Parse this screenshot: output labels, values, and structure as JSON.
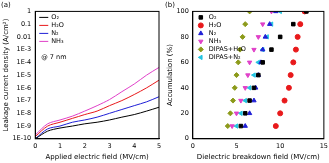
{
  "chart_data": [
    {
      "type": "line",
      "title": "(a)",
      "x_label": "Applied electric field (MV/cm)",
      "y_label": "Leakage current density (A/cm²)",
      "annotation": "@ 7 nm",
      "log": "y",
      "grid": false,
      "legend": "upper left",
      "x": [
        0,
        0.5,
        1,
        1.5,
        2,
        2.5,
        3,
        3.5,
        4,
        4.5,
        5
      ],
      "xlim": [
        0,
        5
      ],
      "xticks": [
        0,
        1,
        2,
        3,
        4,
        5
      ],
      "ylim": [
        1e-10,
        1
      ],
      "yticks": [
        {
          "value": 1e-10,
          "label": "1E-10"
        },
        {
          "value": 1e-09,
          "label": "1E-9"
        },
        {
          "value": 1e-08,
          "label": "1E-8"
        },
        {
          "value": 1e-07,
          "label": "1E-7"
        },
        {
          "value": 1e-06,
          "label": "1E-6"
        },
        {
          "value": 1e-05,
          "label": "1E-5"
        },
        {
          "value": 0.0001,
          "label": "1E-4"
        },
        {
          "value": 0.001,
          "label": "1E-3"
        },
        0.01,
        0.1,
        1
      ],
      "series": [
        {
          "name": "O₂",
          "color": "#000000",
          "values": [
            1e-10,
            4e-10,
            7e-10,
            1e-09,
            1.5e-09,
            2e-09,
            3e-09,
            5e-09,
            8e-09,
            1.5e-08,
            3e-08
          ]
        },
        {
          "name": "H₂O",
          "color": "#e8191b",
          "values": [
            1.5e-10,
            1e-09,
            2e-09,
            4e-09,
            8e-09,
            1.5e-08,
            4e-08,
            1e-07,
            3e-07,
            1e-06,
            4e-06
          ]
        },
        {
          "name": "N₂",
          "color": "#1f1fd6",
          "values": [
            1e-10,
            6e-10,
            1e-09,
            2e-09,
            3e-09,
            5e-09,
            1e-08,
            2e-08,
            4e-08,
            8e-08,
            2e-07
          ]
        },
        {
          "name": "NH₃",
          "color": "#e040c8",
          "values": [
            2e-10,
            1.5e-09,
            3e-09,
            6e-09,
            1.5e-08,
            4e-08,
            1.2e-07,
            5e-07,
            2e-06,
            1e-05,
            4e-05
          ]
        }
      ]
    },
    {
      "type": "scatter",
      "title": "(b)",
      "x_label": "Dielectric breakdown field (MV/cm)",
      "y_label": "Accumulation (%)",
      "grid": false,
      "legend": "upper left",
      "xlim": [
        0,
        15
      ],
      "xticks": [
        0,
        5,
        10,
        15
      ],
      "ylim": [
        0,
        100
      ],
      "yticks": [
        0,
        20,
        40,
        60,
        80,
        100
      ],
      "series": [
        {
          "name": "O₂",
          "color": "#000000",
          "marker": "square",
          "x": [
            5.5,
            6,
            6.5,
            7,
            7.5,
            8,
            9,
            10,
            11.5,
            13
          ],
          "values": [
            10,
            20,
            30,
            40,
            50,
            60,
            70,
            80,
            90,
            100
          ]
        },
        {
          "name": "H₂O",
          "color": "#e8191b",
          "marker": "circle",
          "x": [
            9.5,
            10,
            10.5,
            11,
            11.2,
            11.5,
            11.8,
            12,
            12.3,
            12.8
          ],
          "values": [
            10,
            20,
            30,
            40,
            50,
            60,
            70,
            80,
            90,
            100
          ]
        },
        {
          "name": "N₂",
          "color": "#1f1fd6",
          "marker": "triangle",
          "x": [
            6,
            6.5,
            7,
            7.2,
            7.5,
            7.8,
            8,
            8.3,
            8.8,
            9.5
          ],
          "values": [
            10,
            20,
            30,
            40,
            50,
            60,
            70,
            80,
            90,
            100
          ]
        },
        {
          "name": "NH₃",
          "color": "#e040c8",
          "marker": "triangle_down",
          "x": [
            4.5,
            5,
            5.5,
            6,
            6.3,
            6.5,
            7,
            7.5,
            8,
            9
          ],
          "values": [
            10,
            20,
            30,
            40,
            50,
            60,
            70,
            80,
            90,
            100
          ]
        },
        {
          "name": "DIPAS+H₂O",
          "color": "#8c9a1a",
          "marker": "diamond",
          "x": [
            4,
            4.3,
            4.6,
            4.8,
            5,
            5.2,
            5.4,
            5.7,
            6,
            6.5
          ],
          "values": [
            10,
            20,
            30,
            40,
            50,
            60,
            70,
            80,
            90,
            100
          ]
        },
        {
          "name": "DIPAS+N₂",
          "color": "#22c4e0",
          "marker": "triangle_left",
          "x": [
            5,
            5.5,
            6,
            6.5,
            7,
            7.5,
            8,
            8.5,
            9,
            10
          ],
          "values": [
            10,
            20,
            30,
            40,
            50,
            60,
            70,
            80,
            90,
            100
          ]
        }
      ]
    }
  ]
}
